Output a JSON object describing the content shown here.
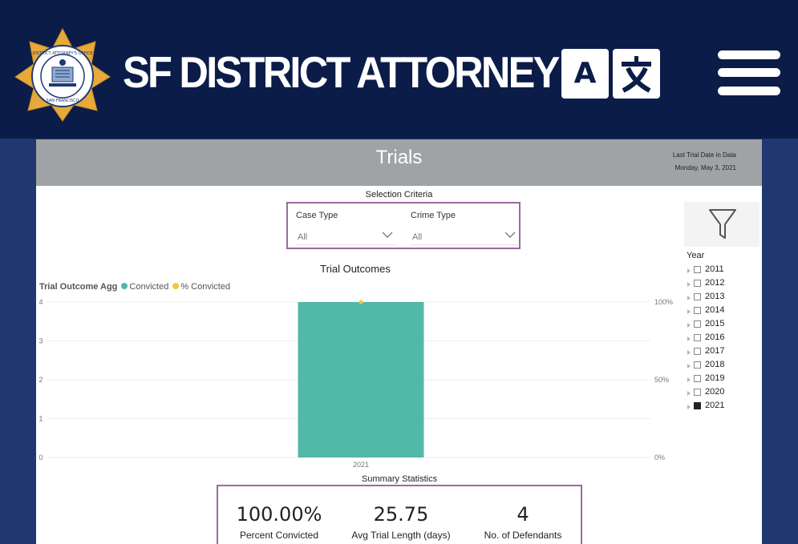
{
  "header": {
    "site_title": "SF DISTRICT ATTORNEY",
    "badge_text_top": "DISTRICT ATTORNEY'S OFFICE",
    "badge_text_bottom": "SAN FRANCISCO",
    "translate_latin": "A",
    "translate_cjk": "文",
    "colors": {
      "navy": "#0b1c49",
      "gold": "#e6a93a"
    }
  },
  "report": {
    "title": "Trials",
    "last_date_label": "Last Trial Date in Data",
    "last_date_value": "Monday, May 3, 2021",
    "selection_title": "Selection Criteria",
    "slicers": [
      {
        "label": "Case Type",
        "value": "All",
        "icon": "chevron-down-icon"
      },
      {
        "label": "Crime Type",
        "value": "All",
        "icon": "chevron-down-icon"
      }
    ],
    "filter_icon": "funnel-icon",
    "year_slicer": {
      "label": "Year",
      "items": [
        {
          "year": "2011",
          "checked": false
        },
        {
          "year": "2012",
          "checked": false
        },
        {
          "year": "2013",
          "checked": false
        },
        {
          "year": "2014",
          "checked": false
        },
        {
          "year": "2015",
          "checked": false
        },
        {
          "year": "2016",
          "checked": false
        },
        {
          "year": "2017",
          "checked": false
        },
        {
          "year": "2018",
          "checked": false
        },
        {
          "year": "2019",
          "checked": false
        },
        {
          "year": "2020",
          "checked": false
        },
        {
          "year": "2021",
          "checked": true
        }
      ]
    },
    "summary_title": "Summary Statistics",
    "summary": [
      {
        "value": "100.00%",
        "caption": "Percent Convicted"
      },
      {
        "value": "25.75",
        "caption": "Avg Trial Length (days)"
      },
      {
        "value": "4",
        "caption": "No. of Defendants"
      }
    ]
  },
  "chart_data": {
    "type": "bar",
    "title": "Trial Outcomes",
    "legend_title": "Trial Outcome Agg",
    "legend_placement": "top-left",
    "categories": [
      "2021"
    ],
    "series": [
      {
        "name": "Convicted",
        "type": "bar",
        "axis": "left",
        "color": "#52b8a8",
        "values": [
          4
        ]
      },
      {
        "name": "% Convicted",
        "type": "line",
        "axis": "right",
        "color": "#f2c744",
        "values": [
          100
        ]
      }
    ],
    "y_left": {
      "ticks": [
        "0",
        "1",
        "2",
        "3",
        "4"
      ],
      "range": [
        0,
        4
      ]
    },
    "y_right": {
      "ticks": [
        "0%",
        "50%",
        "100%"
      ],
      "range": [
        0,
        100
      ]
    },
    "grid": true
  }
}
